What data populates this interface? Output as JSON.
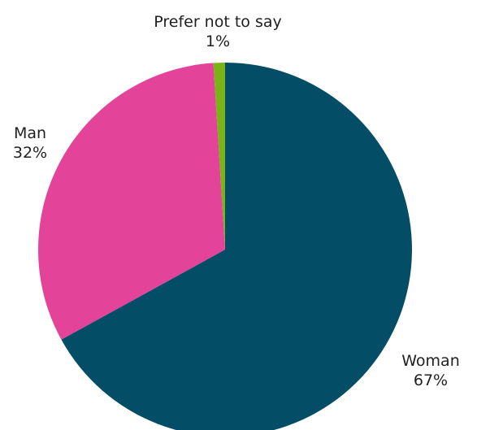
{
  "chart_data": {
    "type": "pie",
    "categories": [
      "Woman",
      "Man",
      "Prefer not to say"
    ],
    "values": [
      67,
      32,
      1
    ],
    "labels": [
      "67%",
      "32%",
      "1%"
    ],
    "colors": [
      "#044d66",
      "#e3449a",
      "#7ab317"
    ],
    "start_angle": "12 o'clock, clockwise",
    "legend": "none",
    "title": ""
  }
}
